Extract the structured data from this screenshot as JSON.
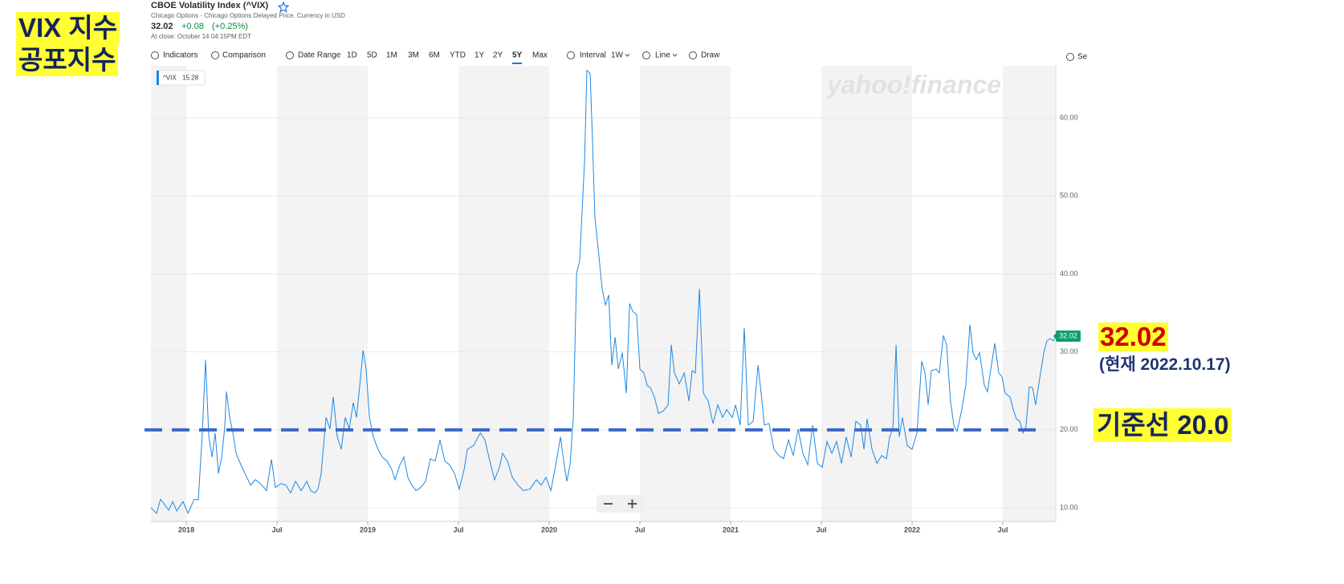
{
  "header": {
    "title": "CBOE Volatility Index (^VIX)",
    "subtitle": "Chicago Options - Chicago Options Delayed Price. Currency in USD",
    "price": "32.02",
    "change": "+0.08",
    "change_percent": "(+0.25%)",
    "close_note": "At close: October 14 04:15PM EDT"
  },
  "toolbar": [
    "Indicators",
    "Comparison",
    "Date Range",
    "1D",
    "5D",
    "1M",
    "3M",
    "6M",
    "YTD",
    "1Y",
    "2Y",
    "5Y",
    "Max",
    "Interval",
    "1W",
    "Line",
    "Draw",
    "Se"
  ],
  "toolbar_active": "5Y",
  "watermark": "yahoo!finance",
  "annotations": {
    "title_line1": "VIX 지수",
    "title_line2": "공포지수",
    "current_value": "32.02",
    "current_date": "(현재 2022.10.17)"
  },
  "chart_data": {
    "type": "line",
    "x": [
      2017.805,
      2017.836,
      2017.858,
      2017.903,
      2017.925,
      2017.947,
      2017.982,
      2018.009,
      2018.044,
      2018.066,
      2018.088,
      2018.106,
      2018.124,
      2018.142,
      2018.159,
      2018.177,
      2018.195,
      2018.212,
      2018.221,
      2018.239,
      2018.257,
      2018.274,
      2018.301,
      2018.323,
      2018.354,
      2018.381,
      2018.412,
      2018.442,
      2018.469,
      2018.491,
      2018.522,
      2018.549,
      2018.575,
      2018.602,
      2018.633,
      2018.664,
      2018.686,
      2018.708,
      2018.726,
      2018.743,
      2018.77,
      2018.792,
      2018.81,
      2018.832,
      2018.854,
      2018.876,
      2018.898,
      2018.92,
      2018.938,
      2018.956,
      2018.974,
      2018.991,
      2019.009,
      2019.031,
      2019.053,
      2019.08,
      2019.106,
      2019.133,
      2019.15,
      2019.177,
      2019.199,
      2019.221,
      2019.243,
      2019.266,
      2019.292,
      2019.319,
      2019.345,
      2019.372,
      2019.398,
      2019.425,
      2019.451,
      2019.478,
      2019.504,
      2019.531,
      2019.549,
      2019.584,
      2019.62,
      2019.646,
      2019.673,
      2019.699,
      2019.726,
      2019.743,
      2019.77,
      2019.797,
      2019.828,
      2019.858,
      2019.894,
      2019.929,
      2019.956,
      2019.982,
      2020.009,
      2020.036,
      2020.062,
      2020.08,
      2020.097,
      2020.115,
      2020.133,
      2020.151,
      2020.168,
      2020.195,
      2020.208,
      2020.226,
      2020.239,
      2020.252,
      2020.27,
      2020.292,
      2020.31,
      2020.328,
      2020.345,
      2020.363,
      2020.381,
      2020.403,
      2020.425,
      2020.443,
      2020.46,
      2020.482,
      2020.5,
      2020.522,
      2020.54,
      2020.558,
      2020.58,
      2020.602,
      2020.628,
      2020.655,
      2020.673,
      2020.69,
      2020.717,
      2020.744,
      2020.77,
      2020.788,
      2020.805,
      2020.828,
      2020.85,
      2020.876,
      2020.903,
      2020.929,
      2020.956,
      2020.978,
      2021.009,
      2021.027,
      2021.053,
      2021.075,
      2021.097,
      2021.124,
      2021.151,
      2021.168,
      2021.186,
      2021.212,
      2021.239,
      2021.266,
      2021.292,
      2021.319,
      2021.345,
      2021.372,
      2021.398,
      2021.425,
      2021.452,
      2021.478,
      2021.505,
      2021.531,
      2021.558,
      2021.584,
      2021.611,
      2021.637,
      2021.664,
      2021.69,
      2021.717,
      2021.735,
      2021.752,
      2021.779,
      2021.806,
      2021.832,
      2021.859,
      2021.876,
      2021.894,
      2021.912,
      2021.929,
      2021.947,
      2021.973,
      2022.0,
      2022.027,
      2022.053,
      2022.071,
      2022.089,
      2022.106,
      2022.133,
      2022.15,
      2022.173,
      2022.19,
      2022.212,
      2022.23,
      2022.248,
      2022.274,
      2022.296,
      2022.319,
      2022.336,
      2022.354,
      2022.372,
      2022.398,
      2022.416,
      2022.434,
      2022.456,
      2022.478,
      2022.496,
      2022.513,
      2022.54,
      2022.558,
      2022.575,
      2022.593,
      2022.611,
      2022.628,
      2022.646,
      2022.664,
      2022.681,
      2022.708,
      2022.726,
      2022.743,
      2022.761,
      2022.779,
      2022.792
    ],
    "series": [
      {
        "name": "^VIX",
        "color": "#1e88e5",
        "values": [
          10.0,
          9.3,
          11.1,
          9.7,
          10.8,
          9.6,
          10.8,
          9.3,
          11.1,
          11.0,
          19.6,
          29.0,
          19.1,
          16.5,
          19.6,
          14.4,
          16.5,
          20.4,
          24.9,
          21.6,
          19.6,
          17.0,
          15.5,
          14.4,
          12.9,
          13.6,
          13.0,
          12.2,
          16.2,
          12.6,
          13.1,
          12.9,
          11.9,
          13.4,
          12.2,
          13.4,
          12.2,
          11.9,
          12.4,
          14.4,
          21.6,
          20.1,
          24.2,
          19.1,
          17.5,
          21.6,
          20.1,
          23.5,
          21.6,
          25.7,
          30.2,
          27.8,
          21.6,
          19.1,
          17.7,
          16.5,
          16.0,
          14.9,
          13.6,
          15.5,
          16.5,
          13.9,
          12.9,
          12.2,
          12.6,
          13.4,
          16.3,
          16.0,
          18.7,
          16.0,
          15.5,
          14.4,
          12.4,
          14.9,
          17.5,
          18.0,
          19.6,
          18.7,
          16.0,
          13.6,
          15.2,
          17.0,
          16.0,
          13.9,
          12.9,
          12.2,
          12.4,
          13.6,
          12.9,
          13.9,
          12.2,
          15.5,
          19.1,
          16.0,
          13.4,
          15.5,
          21.6,
          40.1,
          41.7,
          54.5,
          66.1,
          65.7,
          56.6,
          47.3,
          43.2,
          38.1,
          36.0,
          37.3,
          28.3,
          31.9,
          27.8,
          29.9,
          24.7,
          36.2,
          35.2,
          34.8,
          27.8,
          27.3,
          25.7,
          25.4,
          24.2,
          22.1,
          22.4,
          23.2,
          30.9,
          27.3,
          25.9,
          27.3,
          23.7,
          27.6,
          27.3,
          38.1,
          24.7,
          23.7,
          20.8,
          23.2,
          21.6,
          22.6,
          21.6,
          23.2,
          20.6,
          33.1,
          20.6,
          21.1,
          28.3,
          24.7,
          20.6,
          20.8,
          17.5,
          16.7,
          16.3,
          18.7,
          16.7,
          20.1,
          17.0,
          15.5,
          20.6,
          15.7,
          15.2,
          18.5,
          17.0,
          18.5,
          15.7,
          19.1,
          16.5,
          21.1,
          20.6,
          17.5,
          21.4,
          17.5,
          15.7,
          16.7,
          16.3,
          19.1,
          20.1,
          30.9,
          19.1,
          21.6,
          18.0,
          17.5,
          19.6,
          28.8,
          27.3,
          23.2,
          27.6,
          27.8,
          27.3,
          32.1,
          30.9,
          23.7,
          20.6,
          19.8,
          22.6,
          25.7,
          33.5,
          29.9,
          29.0,
          29.9,
          25.7,
          24.9,
          27.8,
          31.1,
          27.3,
          26.8,
          24.7,
          24.2,
          22.6,
          21.4,
          21.1,
          19.6,
          20.4,
          25.5,
          25.4,
          23.2,
          27.3,
          29.9,
          31.4,
          31.7,
          31.4,
          32.02
        ]
      }
    ],
    "xlim": [
      2017.805,
      2022.792
    ],
    "xticks": [
      2018,
      {
        "value": 2018.5,
        "label": "Jul"
      },
      2019,
      {
        "value": 2019.5,
        "label": "Jul"
      },
      2020,
      {
        "value": 2020.5,
        "label": "Jul"
      },
      2021,
      {
        "value": 2021.5,
        "label": "Jul"
      },
      2022,
      {
        "value": 2022.5,
        "label": "Jul"
      }
    ],
    "ylim": [
      8.25,
      66.7
    ],
    "yticks": [
      {
        "value": 10,
        "label": "10.00"
      },
      {
        "value": 20,
        "label": "20.00"
      },
      {
        "value": 30,
        "label": "30.00"
      },
      {
        "value": 40,
        "label": "40.00"
      },
      {
        "value": 50,
        "label": "50.00"
      },
      {
        "value": 60,
        "label": "60.00"
      }
    ],
    "grid": true,
    "tooltip_value": "15.28",
    "price_tag": "32.02",
    "reference_line": {
      "value": 20,
      "label": "기준선 20.0",
      "color": "#3a68c6"
    }
  }
}
